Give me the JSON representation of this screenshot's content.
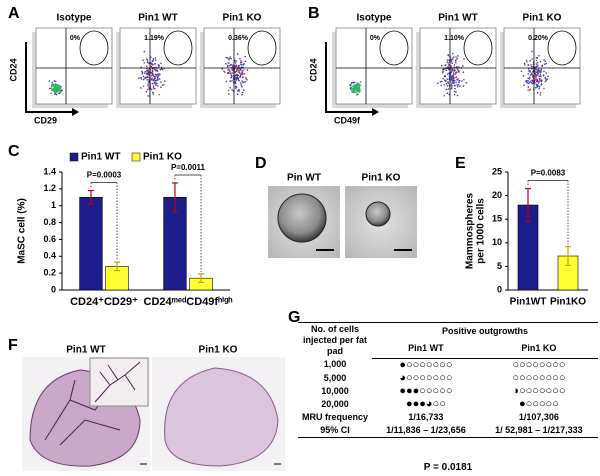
{
  "flow_panels": [
    {
      "letter": "A",
      "y_label": "CD24",
      "x_label": "CD29",
      "plots": [
        {
          "title": "Isotype",
          "gate": "0%"
        },
        {
          "title": "Pin1 WT",
          "gate": "1.19%"
        },
        {
          "title": "Pin1 KO",
          "gate": "0.36%"
        }
      ]
    },
    {
      "letter": "B",
      "y_label": "CD24",
      "x_label": "CD49f",
      "plots": [
        {
          "title": "Isotype",
          "gate": "0%"
        },
        {
          "title": "Pin1 WT",
          "gate": "1.10%"
        },
        {
          "title": "Pin1 KO",
          "gate": "0.20%"
        }
      ]
    }
  ],
  "chart_data": [
    {
      "type": "bar",
      "letter": "C",
      "y_label": [
        "MaSC cell (%)"
      ],
      "categories": [
        "CD24⁺CD29⁺",
        "CD24ᵐᵉᵈCD49fʰⁱᵍʰ"
      ],
      "series": [
        {
          "name": "Pin1 WT",
          "color": "#1c1c8a",
          "values": [
            1.1,
            1.1
          ],
          "errors": [
            0.08,
            0.17
          ]
        },
        {
          "name": "Pin1 KO",
          "color": "#ffff33",
          "values": [
            0.28,
            0.14
          ],
          "errors": [
            0.05,
            0.05
          ]
        }
      ],
      "annotations": [
        "P=0.0003",
        "P=0.0011"
      ],
      "ylim": [
        0,
        1.4
      ],
      "yticks": [
        0,
        0.2,
        0.4,
        0.6,
        0.8,
        1,
        1.2,
        1.4
      ]
    },
    {
      "type": "bar",
      "letter": "E",
      "y_label": [
        "Mammospheres",
        "per 1000 cells"
      ],
      "categories": [
        "Pin1WT",
        "Pin1KO"
      ],
      "values": [
        18,
        7.2
      ],
      "errors": [
        3.5,
        2
      ],
      "colors": [
        "#1c1c8a",
        "#ffff33"
      ],
      "annotations": [
        "P=0.0083"
      ],
      "ylim": [
        0,
        25
      ],
      "yticks": [
        0,
        5,
        10,
        15,
        20,
        25
      ]
    }
  ],
  "micrographs": {
    "letter": "D",
    "titles": [
      "Pin WT",
      "Pin1 KO"
    ]
  },
  "whole_mounts": {
    "letter": "F",
    "titles": [
      "Pin1 WT",
      "Pin1 KO"
    ]
  },
  "table": {
    "letter": "G",
    "header": [
      "No. of cells injected per fat pad",
      "Positive outgrowths",
      "Pin1 WT",
      "Pin1 KO"
    ],
    "rows": [
      [
        "1,000",
        "●○○○○○○○",
        "○○○○○○○○"
      ],
      [
        "5,000",
        "◕○○○○○○○",
        "○○○○○○○○"
      ],
      [
        "10,000",
        "●●●○○○○○",
        "◑○○○○○○○"
      ],
      [
        "20,000",
        "●●●◕○○",
        "●○○○○○"
      ],
      [
        "MRU frequency",
        "1/16,733",
        "1/107,306"
      ],
      [
        "95% CI",
        "1/11,836 – 1/23,656",
        "1/ 52,981 – 1/217,333"
      ]
    ],
    "p_value": "P = 0.0181"
  }
}
